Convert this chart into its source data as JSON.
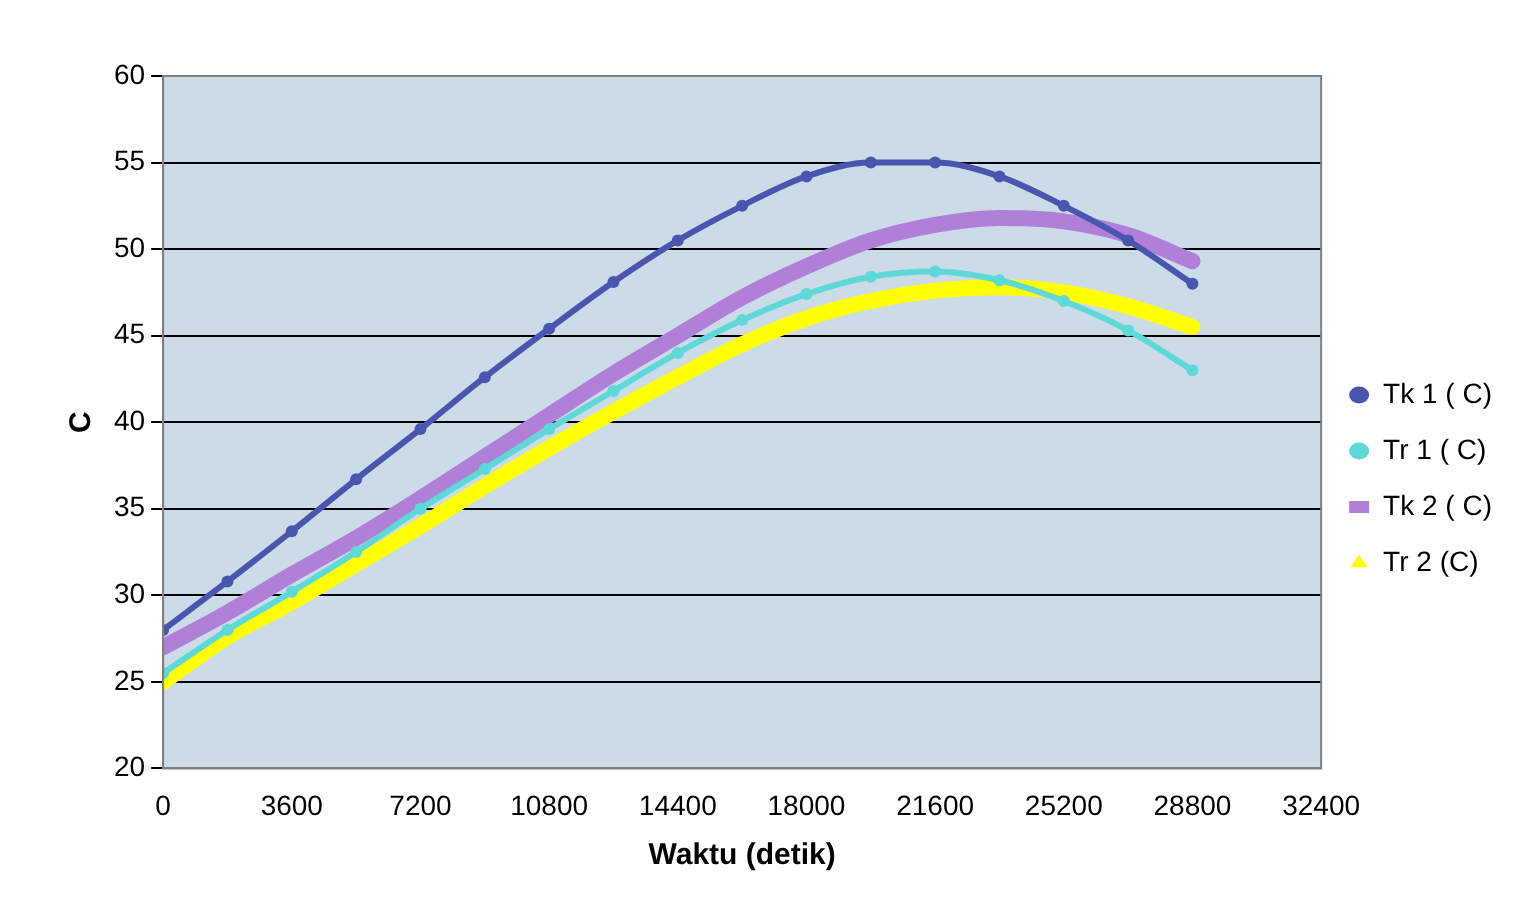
{
  "chart_data": {
    "type": "line",
    "xlabel": "Waktu (detik)",
    "ylabel": "C",
    "x": [
      0,
      1800,
      3600,
      5400,
      7200,
      9000,
      10800,
      12600,
      14400,
      16200,
      18000,
      19800,
      21600,
      23400,
      25200,
      27000,
      28800
    ],
    "series": [
      {
        "name": "Tk 1 ( C)",
        "color": "#4a55b0",
        "marker": "circle",
        "values": [
          28,
          30.8,
          33.7,
          36.7,
          39.6,
          42.6,
          45.4,
          48.1,
          50.5,
          52.5,
          54.2,
          55,
          55,
          54.2,
          52.5,
          50.5,
          48
        ]
      },
      {
        "name": "Tr 1 ( C)",
        "color": "#5fd8d8",
        "marker": "circle",
        "values": [
          25.5,
          28,
          30.2,
          32.5,
          35,
          37.3,
          39.6,
          41.8,
          44,
          45.9,
          47.4,
          48.4,
          48.7,
          48.2,
          47,
          45.3,
          43
        ]
      },
      {
        "name": "Tk 2 ( C)",
        "color": "#b07fd8",
        "marker": "square",
        "values": [
          27,
          29,
          31.2,
          33.3,
          35.6,
          38,
          40.4,
          42.8,
          45,
          47.2,
          49,
          50.5,
          51.4,
          51.8,
          51.6,
          50.8,
          49.3
        ]
      },
      {
        "name": "Tr 2 (C)",
        "color": "#ffff00",
        "marker": "triangle",
        "values": [
          25,
          27.6,
          29.6,
          31.8,
          34,
          36.3,
          38.5,
          40.6,
          42.6,
          44.5,
          46,
          47,
          47.6,
          47.8,
          47.5,
          46.7,
          45.5
        ]
      }
    ],
    "xlim": [
      0,
      32400
    ],
    "xticks": [
      0,
      3600,
      7200,
      10800,
      14400,
      18000,
      21600,
      25200,
      28800,
      32400
    ],
    "ylim": [
      20,
      60
    ],
    "yticks": [
      20,
      25,
      30,
      35,
      40,
      45,
      50,
      55,
      60
    ],
    "grid": "y",
    "legend": "right"
  }
}
